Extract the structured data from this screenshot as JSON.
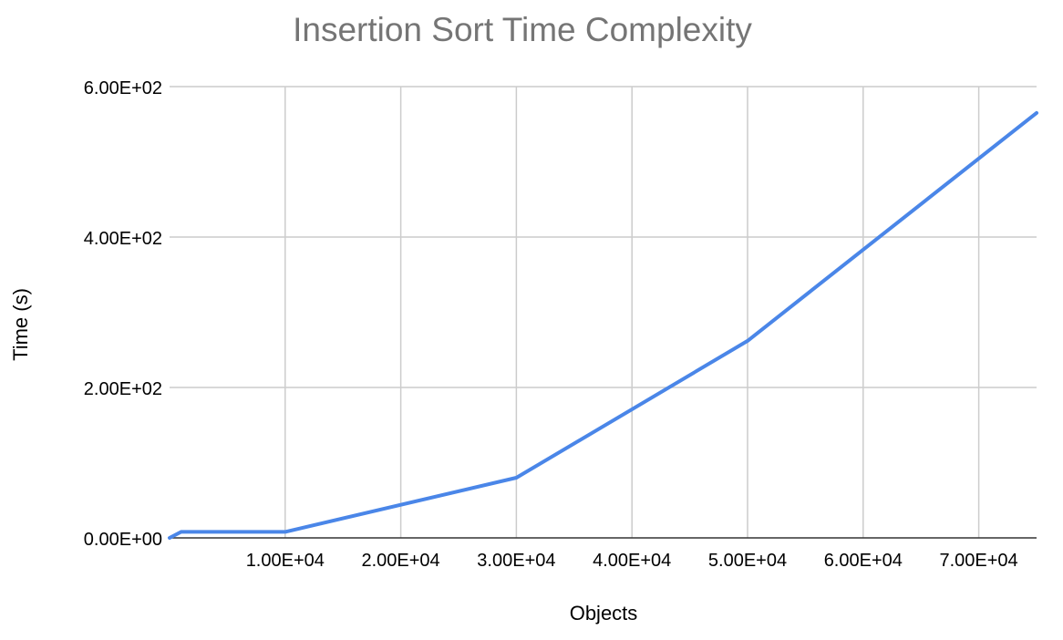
{
  "chart_data": {
    "type": "line",
    "title": "Insertion Sort Time Complexity",
    "xlabel": "Objects",
    "ylabel": "Time (s)",
    "xlim": [
      0,
      75000
    ],
    "ylim": [
      0,
      600
    ],
    "x_ticks": [
      10000,
      20000,
      30000,
      40000,
      50000,
      60000,
      70000
    ],
    "x_tick_labels": [
      "1.00E+04",
      "2.00E+04",
      "3.00E+04",
      "4.00E+04",
      "5.00E+04",
      "6.00E+04",
      "7.00E+04"
    ],
    "y_ticks": [
      0,
      200,
      400,
      600
    ],
    "y_tick_labels": [
      "0.00E+00",
      "2.00E+02",
      "4.00E+02",
      "6.00E+02"
    ],
    "grid": true,
    "series": [
      {
        "color": "#4a86e8",
        "x": [
          0,
          1000,
          10000,
          30000,
          50000,
          75000
        ],
        "y": [
          0,
          8,
          8,
          80,
          262,
          565
        ]
      }
    ],
    "colors": {
      "line": "#4a86e8",
      "grid": "#cccccc",
      "axis": "#333333",
      "title": "#757575",
      "text": "#000000"
    }
  }
}
